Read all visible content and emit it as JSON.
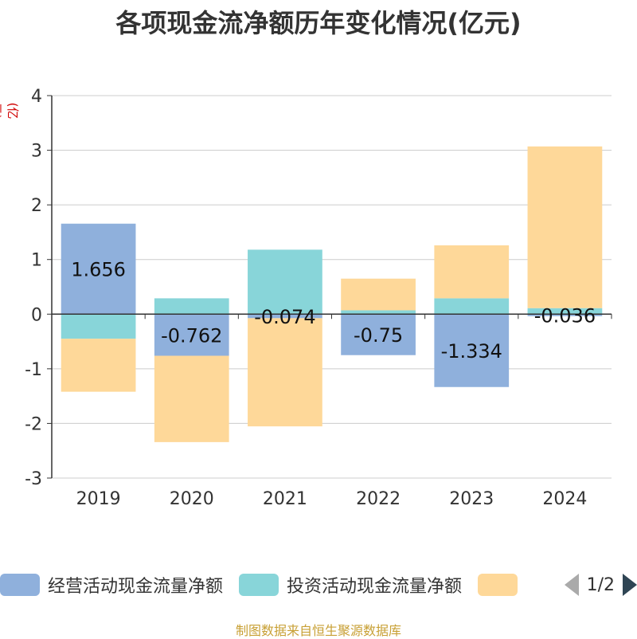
{
  "title": "各项现金流净额历年变化情况(亿元)",
  "unit_label": "(亿元)",
  "source": "制图数据来自恒生聚源数据库",
  "legend_pager": {
    "page": "1/2"
  },
  "colors": {
    "operating": "#8fb0dc",
    "investing": "#88d5d9",
    "financing": "#fed899",
    "axis": "#333333",
    "grid": "#cccccc",
    "unit": "#d00000",
    "source": "#c8a035"
  },
  "chart_data": {
    "type": "bar",
    "stacked": true,
    "categories": [
      "2019",
      "2020",
      "2021",
      "2022",
      "2023",
      "2024"
    ],
    "series": [
      {
        "name": "经营活动现金流量净额",
        "values": [
          1.656,
          -0.762,
          -0.074,
          -0.75,
          -1.334,
          -0.036
        ]
      },
      {
        "name": "投资活动现金流量净额",
        "values": [
          -0.45,
          0.29,
          1.18,
          0.07,
          0.29,
          0.11
        ]
      },
      {
        "name": "",
        "values": [
          -0.97,
          -1.58,
          -1.98,
          0.58,
          0.97,
          2.96
        ]
      }
    ],
    "data_labels": [
      "1.656",
      "-0.762",
      "-0.074",
      "-0.75",
      "-1.334",
      "-0.036"
    ],
    "ylim": [
      -3,
      4
    ],
    "yticks": [
      -3,
      -2,
      -1,
      0,
      1,
      2,
      3,
      4
    ],
    "grid": true,
    "legend_position": "bottom"
  }
}
